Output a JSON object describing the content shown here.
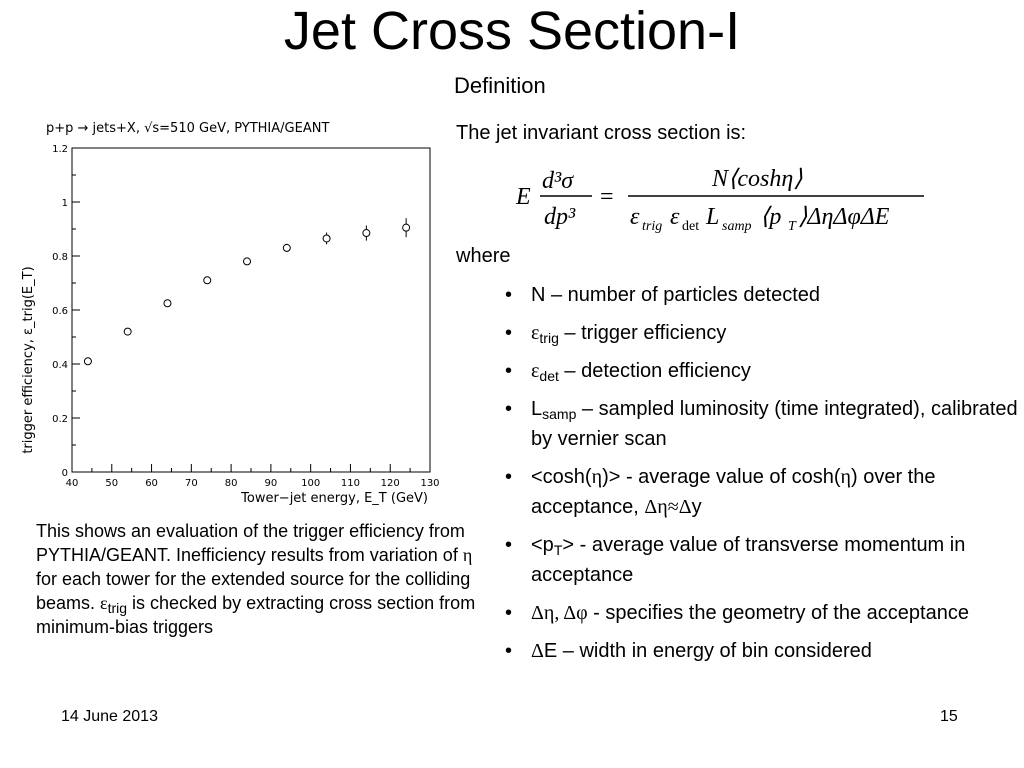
{
  "slide": {
    "title": "Jet Cross Section-I",
    "subtitle": "Definition",
    "intro": "The jet invariant cross section is:",
    "where": "where",
    "formula": {
      "lhs_E": "E",
      "lhs_num": "d³σ",
      "lhs_den": "dp³",
      "eq": "=",
      "rhs_num": "N⟨coshη⟩",
      "rhs_den": "ε",
      "rhs_den_trig": "trig",
      "rhs_den_eps2": "ε",
      "rhs_den_det": "det",
      "rhs_den_L": "L",
      "rhs_den_samp": "samp",
      "rhs_den_rest1": "⟨p",
      "rhs_den_T": "T",
      "rhs_den_rest2": "⟩ΔηΔφΔE"
    },
    "bullets": {
      "b1": "N – number of particles detected",
      "b2_sym": "ε",
      "b2_sub": "trig",
      "b2_text": " – trigger efficiency",
      "b3_sym": "ε",
      "b3_sub": "det",
      "b3_text": " – detection efficiency",
      "b4_sym": "L",
      "b4_sub": "samp",
      "b4_text": " – sampled luminosity (time integrated), calibrated by vernier scan",
      "b5_a": "<cosh(",
      "b5_eta": "η",
      "b5_b": ")> - average value of cosh(",
      "b5_eta2": "η",
      "b5_c": ") over the acceptance, ",
      "b5_sym": "Δη≈Δ",
      "b5_d": "y",
      "b6_a": "<p",
      "b6_sub": "T",
      "b6_b": "> - average value of transverse momentum in acceptance",
      "b7_sym": "Δη, Δφ",
      "b7_text": " - specifies the geometry of the acceptance",
      "b8_sym": "Δ",
      "b8_text": "E – width in energy of bin considered"
    },
    "caption": {
      "a": "This shows an evaluation of the trigger efficiency from PYTHIA/GEANT.  Inefficiency results from variation of ",
      "eta": "η",
      "b": " for each tower for the extended source for the colliding beams. ",
      "eps": "ε",
      "trig": "trig",
      "c": " is checked by extracting cross section from minimum-bias triggers"
    },
    "footer": {
      "date": "14 June 2013",
      "page": "15"
    },
    "bullet_char": "•"
  },
  "chart_data": {
    "type": "scatter",
    "title": "p+p → jets+X, √s=510 GeV, PYTHIA/GEANT",
    "xlabel": "Tower−jet energy, E_T (GeV)",
    "ylabel": "trigger efficiency, ε_trig(E_T)",
    "xlim": [
      40,
      130
    ],
    "ylim": [
      0,
      1.2
    ],
    "xticks": [
      40,
      50,
      60,
      70,
      80,
      90,
      100,
      110,
      120,
      130
    ],
    "yticks": [
      0,
      0.2,
      0.4,
      0.6,
      0.8,
      1,
      1.2
    ],
    "ytick_labels": [
      "0",
      "0.2",
      "0.4",
      "0.6",
      "0.8",
      "1",
      "1.2"
    ],
    "series": [
      {
        "x": [
          44,
          54,
          64,
          74,
          84,
          94,
          104,
          114,
          124
        ],
        "values": [
          0.41,
          0.52,
          0.625,
          0.71,
          0.78,
          0.83,
          0.865,
          0.885,
          0.905
        ],
        "errors": [
          0.005,
          0.006,
          0.007,
          0.008,
          0.01,
          0.015,
          0.022,
          0.028,
          0.035
        ]
      }
    ],
    "grid": false
  }
}
